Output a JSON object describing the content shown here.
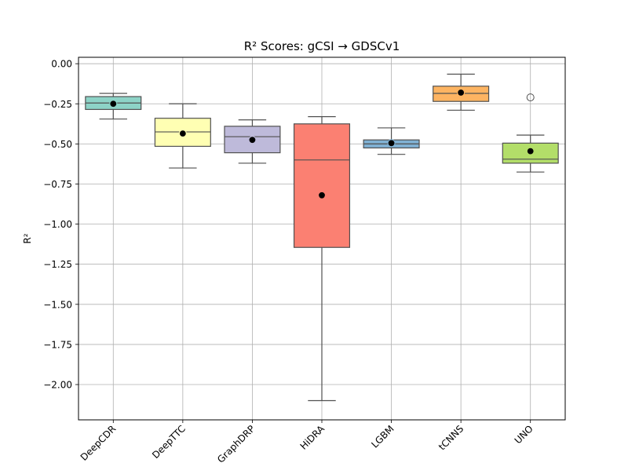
{
  "chart_data": {
    "type": "box",
    "title": "R² Scores: gCSI → GDSCv1",
    "xlabel": "",
    "ylabel": "R²",
    "ylim": [
      -2.22,
      0.04
    ],
    "yticks": [
      0.0,
      -0.25,
      -0.5,
      -0.75,
      -1.0,
      -1.25,
      -1.5,
      -1.75,
      -2.0
    ],
    "ytick_labels": [
      "0.00",
      "−0.25",
      "−0.50",
      "−0.75",
      "−1.00",
      "−1.25",
      "−1.50",
      "−1.75",
      "−2.00"
    ],
    "grid": true,
    "mean_marker": "black dot",
    "categories": [
      "DeepCDR",
      "DeepTTC",
      "GraphDRP",
      "HiDRA",
      "LGBM",
      "tCNNS",
      "UNO"
    ],
    "boxes": [
      {
        "name": "DeepCDR",
        "whisker_low": -0.345,
        "q1": -0.285,
        "median": -0.245,
        "q3": -0.205,
        "whisker_high": -0.185,
        "mean": -0.25,
        "outliers": [],
        "color": "#8dd3c7"
      },
      {
        "name": "DeepTTC",
        "whisker_low": -0.65,
        "q1": -0.515,
        "median": -0.425,
        "q3": -0.34,
        "whisker_high": -0.25,
        "mean": -0.435,
        "outliers": [],
        "color": "#ffffb3"
      },
      {
        "name": "GraphDRP",
        "whisker_low": -0.62,
        "q1": -0.555,
        "median": -0.455,
        "q3": -0.39,
        "whisker_high": -0.35,
        "mean": -0.475,
        "outliers": [],
        "color": "#bebada"
      },
      {
        "name": "HiDRA",
        "whisker_low": -2.1,
        "q1": -1.145,
        "median": -0.6,
        "q3": -0.375,
        "whisker_high": -0.33,
        "mean": -0.82,
        "outliers": [],
        "color": "#fb8072"
      },
      {
        "name": "LGBM",
        "whisker_low": -0.565,
        "q1": -0.525,
        "median": -0.5,
        "q3": -0.475,
        "whisker_high": -0.4,
        "mean": -0.495,
        "outliers": [],
        "color": "#80b1d3"
      },
      {
        "name": "tCNNS",
        "whisker_low": -0.29,
        "q1": -0.235,
        "median": -0.185,
        "q3": -0.14,
        "whisker_high": -0.065,
        "mean": -0.18,
        "outliers": [],
        "color": "#fdb462"
      },
      {
        "name": "UNO",
        "whisker_low": -0.675,
        "q1": -0.62,
        "median": -0.595,
        "q3": -0.495,
        "whisker_high": -0.445,
        "mean": -0.545,
        "outliers": [
          -0.21
        ],
        "color": "#b3de69"
      }
    ]
  }
}
